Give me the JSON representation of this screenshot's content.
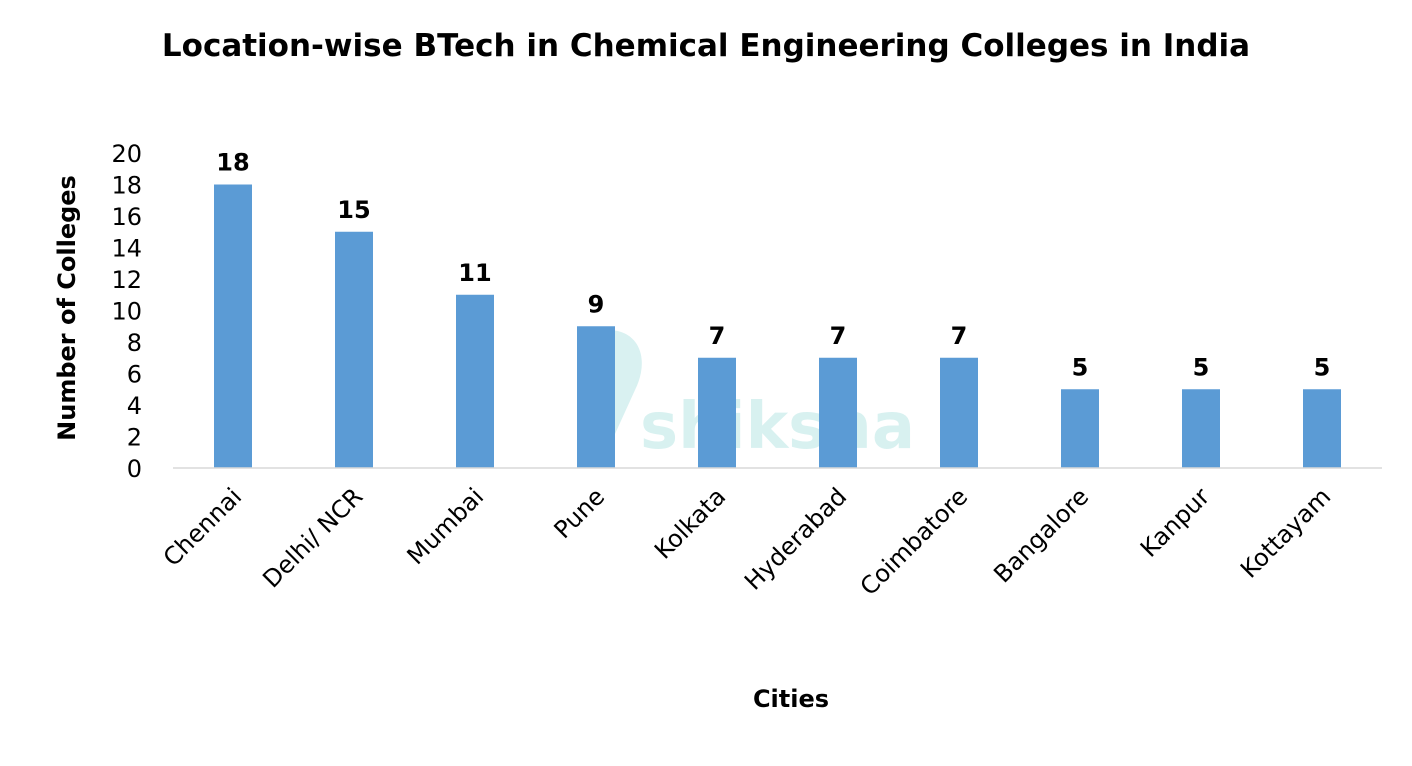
{
  "chart_data": {
    "type": "bar",
    "title": "Location-wise BTech in Chemical Engineering Colleges in India",
    "xlabel": "Cities",
    "ylabel": "Number of Colleges",
    "categories": [
      "Chennai",
      "Delhi/ NCR",
      "Mumbai",
      "Pune",
      "Kolkata",
      "Hyderabad",
      "Coimbatore",
      "Bangalore",
      "Kanpur",
      "Kottayam"
    ],
    "values": [
      18,
      15,
      11,
      9,
      7,
      7,
      7,
      5,
      5,
      5
    ],
    "data_labels": [
      "18",
      "15",
      "11",
      "9",
      "7",
      "7",
      "7",
      "5",
      "5",
      "5"
    ],
    "ylim": [
      0,
      20
    ],
    "yticks": [
      "0",
      "2",
      "4",
      "6",
      "8",
      "10",
      "12",
      "14",
      "16",
      "18",
      "20"
    ],
    "grid": false,
    "legend": "none",
    "bar_color": "#5B9BD5",
    "watermark": "shiksha"
  }
}
